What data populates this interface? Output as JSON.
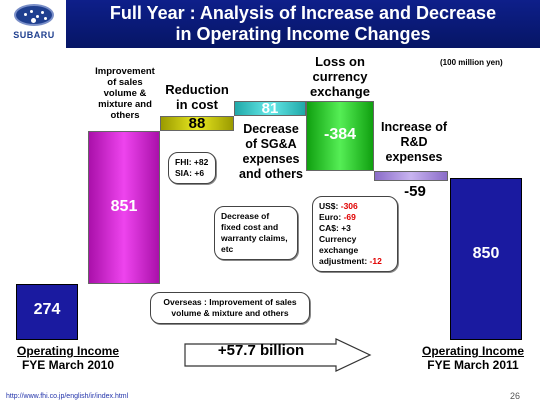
{
  "header": {
    "logo_text": "SUBARU",
    "title_line1": "Full Year : Analysis of Increase and Decrease",
    "title_line2": "in Operating Income Changes"
  },
  "unit_note": "(100 million yen)",
  "start": {
    "value": "274",
    "label_line1": "Operating Income",
    "label_line2": "FYE March 2010"
  },
  "end": {
    "value": "850",
    "label_line1": "Operating Income",
    "label_line2": "FYE March 2011"
  },
  "steps": [
    {
      "key": "sales",
      "value": "851",
      "label_lines": [
        "Improvement",
        "of sales",
        "volume &",
        "mixture and",
        "others"
      ]
    },
    {
      "key": "cost",
      "value": "88",
      "label_lines": [
        "Reduction",
        "in cost"
      ]
    },
    {
      "key": "sga",
      "value": "81",
      "label_lines": [
        "Decrease",
        "of SG&A",
        "expenses",
        "and others"
      ]
    },
    {
      "key": "currency",
      "value": "-384",
      "label_lines": [
        "Loss on",
        "currency",
        "exchange"
      ]
    },
    {
      "key": "rd",
      "value": "-59",
      "label_lines": [
        "Increase of",
        "R&D",
        "expenses"
      ]
    }
  ],
  "callouts": {
    "cost_breakdown": {
      "line1": "FHI: +82",
      "line2": "SIA: +6"
    },
    "sga_note": {
      "line1": "Decrease of",
      "line2": "fixed cost and",
      "line3": "warranty claims,",
      "line4": "etc"
    },
    "currency_breakdown": {
      "us_label": "US$: ",
      "us_value": "-306",
      "euro_label": "Euro: ",
      "euro_value": "-69",
      "ca": "CA$: +3",
      "adj_line1": "Currency",
      "adj_line2": "exchange",
      "adj_label": "adjustment: ",
      "adj_value": "-12"
    },
    "overseas_note": {
      "line1": "Overseas : Improvement of sales",
      "line2": "volume & mixture and others"
    }
  },
  "total_change": "+57.7 billion",
  "footer_url": "http://www.fhi.co.jp/english/ir/index.html",
  "page_number": "26",
  "colors": {
    "start_bar": "#1a1aa0",
    "sales_bar": "#cc22cc",
    "cost_bar": "#b8b800",
    "sga_bar": "#33cccc",
    "currency_bar": "#22cc22",
    "rd_bar": "#a48ad8",
    "end_bar": "#1a1aa0"
  }
}
